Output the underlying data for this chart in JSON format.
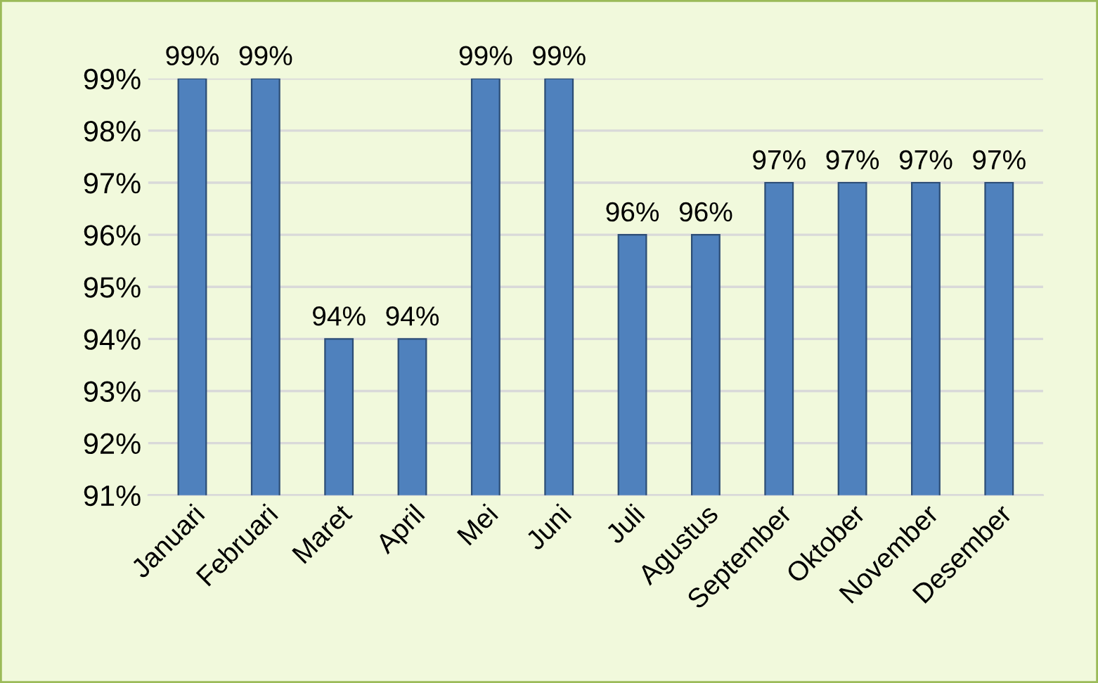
{
  "chart_data": {
    "type": "bar",
    "categories": [
      "Januari",
      "Februari",
      "Maret",
      "April",
      "Mei",
      "Juni",
      "Juli",
      "Agustus",
      "September",
      "Oktober",
      "November",
      "Desember"
    ],
    "values": [
      99,
      99,
      94,
      94,
      99,
      99,
      96,
      96,
      97,
      97,
      97,
      97
    ],
    "value_labels": [
      "99%",
      "99%",
      "94%",
      "94%",
      "99%",
      "99%",
      "96%",
      "96%",
      "97%",
      "97%",
      "97%",
      "97%"
    ],
    "color": "#4f81bd",
    "ylim": [
      91,
      99
    ],
    "yticks": [
      {
        "value": 91,
        "label": "91%"
      },
      {
        "value": 92,
        "label": "92%"
      },
      {
        "value": 93,
        "label": "93%"
      },
      {
        "value": 94,
        "label": "94%"
      },
      {
        "value": 95,
        "label": "95%"
      },
      {
        "value": 96,
        "label": "96%"
      },
      {
        "value": 97,
        "label": "97%"
      },
      {
        "value": 98,
        "label": "98%"
      },
      {
        "value": 99,
        "label": "99%"
      }
    ],
    "grid": "y",
    "legend": false
  }
}
